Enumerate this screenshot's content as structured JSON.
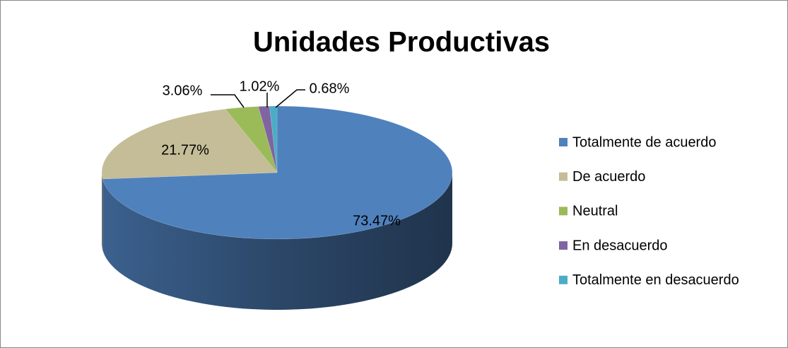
{
  "chart_data": {
    "type": "pie",
    "title": "Unidades Productivas",
    "categories": [
      "Totalmente de acuerdo",
      "De acuerdo",
      "Neutral",
      "En desacuerdo",
      "Totalmente en desacuerdo"
    ],
    "values": [
      73.47,
      21.77,
      3.06,
      1.02,
      0.68
    ],
    "value_labels": [
      "73.47%",
      "21.77%",
      "3.06%",
      "1.02%",
      "0.68%"
    ],
    "colors": [
      "#4f81bd",
      "#c4bd97",
      "#9bbb59",
      "#8064a2",
      "#4bacc6"
    ],
    "legend": "right"
  }
}
